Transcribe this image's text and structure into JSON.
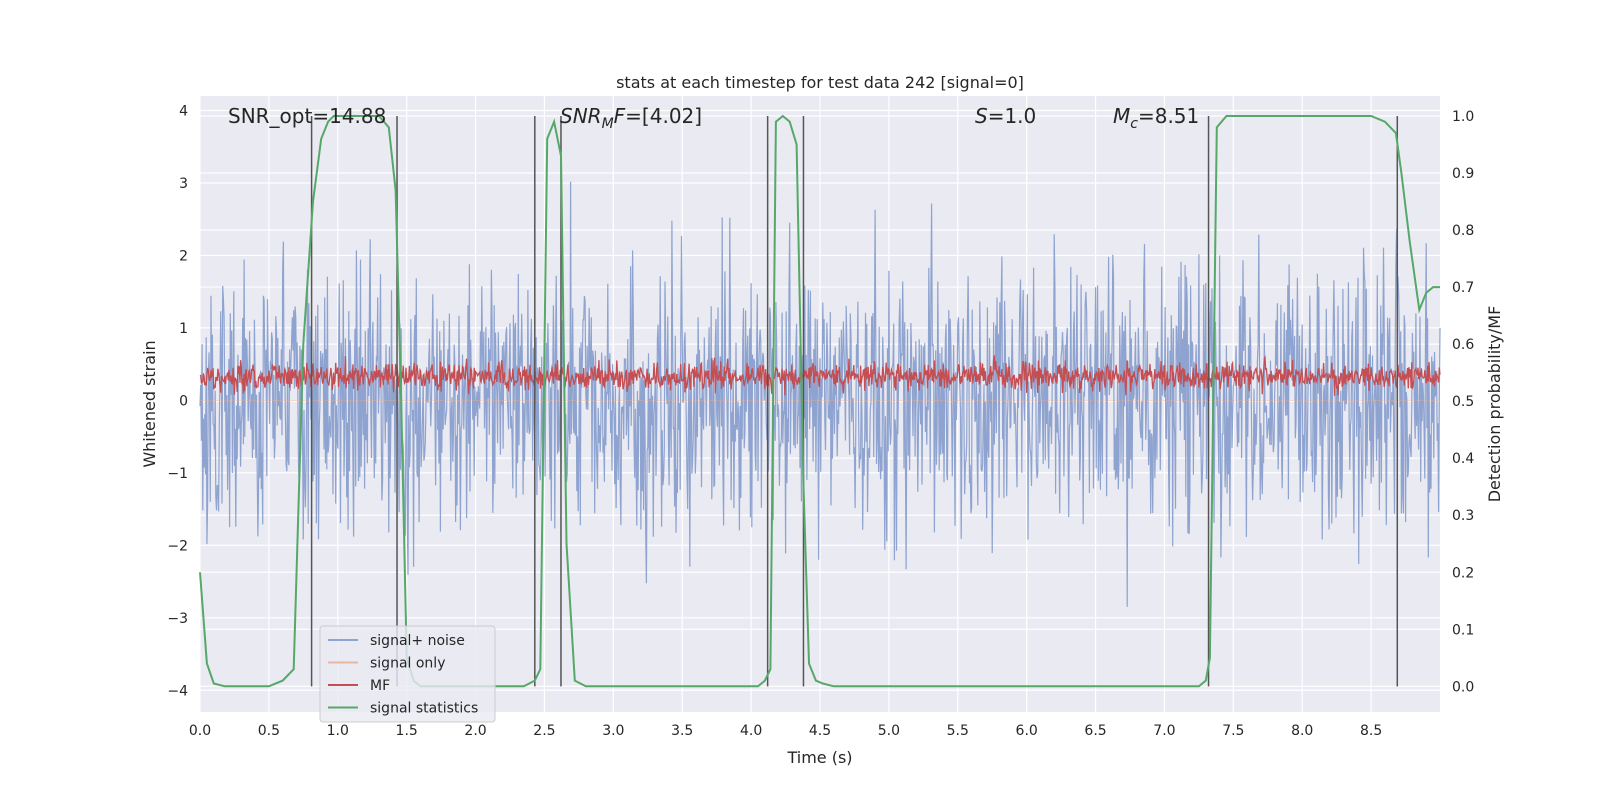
{
  "chart_data": {
    "type": "line",
    "title": "stats at each timestep for test data 242 [signal=0]",
    "xlabel": "Time (s)",
    "ylabel_left": "Whitened strain",
    "ylabel_right": "Detection probability/MF",
    "xlim": [
      0.0,
      9.0
    ],
    "ylim_left": [
      -4.3,
      4.2
    ],
    "ylim_right": [
      -0.045,
      1.035
    ],
    "grid": true,
    "legend_position": "lower-left",
    "x_ticks": [
      "0.0",
      "0.5",
      "1.0",
      "1.5",
      "2.0",
      "2.5",
      "3.0",
      "3.5",
      "4.0",
      "4.5",
      "5.0",
      "5.5",
      "6.0",
      "6.5",
      "7.0",
      "7.5",
      "8.0",
      "8.5"
    ],
    "y_ticks_left": [
      "4",
      "3",
      "2",
      "1",
      "0",
      "−1",
      "−2",
      "−3",
      "−4"
    ],
    "y_ticks_right": [
      "1.0",
      "0.9",
      "0.8",
      "0.7",
      "0.6",
      "0.5",
      "0.4",
      "0.3",
      "0.2",
      "0.1",
      "0.0"
    ],
    "annotations": [
      {
        "id": "snr-opt",
        "parts": [
          {
            "text": "SNR_opt=14.88",
            "style": "normal"
          }
        ]
      },
      {
        "id": "snr-mf",
        "parts": [
          {
            "text": "SNR",
            "style": "italic"
          },
          {
            "text": "M",
            "style": "italic-sub"
          },
          {
            "text": "F",
            "style": "italic"
          },
          {
            "text": "=[4.02]",
            "style": "normal"
          }
        ]
      },
      {
        "id": "s-value",
        "parts": [
          {
            "text": "S",
            "style": "italic"
          },
          {
            "text": "=1.0",
            "style": "normal"
          }
        ]
      },
      {
        "id": "mc-value",
        "parts": [
          {
            "text": "M",
            "style": "italic"
          },
          {
            "text": "c",
            "style": "italic-sub"
          },
          {
            "text": "=8.51",
            "style": "normal"
          }
        ]
      }
    ],
    "vertical_lines_x": [
      0.81,
      1.43,
      2.43,
      2.62,
      4.12,
      4.38,
      7.32,
      8.69
    ],
    "series": [
      {
        "name": "signal+ noise",
        "color": "#8ea3cf",
        "kind": "noise",
        "amplitude_typical": 1.3,
        "amplitude_peak": 3.3
      },
      {
        "name": "signal only",
        "color": "#e8a88c",
        "kind": "flat",
        "values": [
          0.0
        ]
      },
      {
        "name": "MF",
        "color": "#c44e52",
        "kind": "noise",
        "center": 0.33,
        "amplitude_typical": 0.22,
        "amplitude_peak": 0.62
      },
      {
        "name": "signal statistics",
        "color": "#55a868",
        "axis": "right",
        "x": [
          0.0,
          0.05,
          0.1,
          0.18,
          0.3,
          0.5,
          0.6,
          0.68,
          0.75,
          0.82,
          0.88,
          0.93,
          0.97,
          1.0,
          1.1,
          1.2,
          1.3,
          1.37,
          1.42,
          1.46,
          1.5,
          1.55,
          1.6,
          1.8,
          2.0,
          2.2,
          2.35,
          2.43,
          2.47,
          2.52,
          2.57,
          2.62,
          2.66,
          2.72,
          2.8,
          3.0,
          3.5,
          4.0,
          4.05,
          4.1,
          4.14,
          4.18,
          4.23,
          4.28,
          4.33,
          4.38,
          4.42,
          4.47,
          4.52,
          4.6,
          4.8,
          5.0,
          5.5,
          6.0,
          6.5,
          7.0,
          7.2,
          7.25,
          7.3,
          7.33,
          7.38,
          7.45,
          7.6,
          8.0,
          8.5,
          8.6,
          8.68,
          8.72,
          8.78,
          8.85,
          8.9,
          8.95,
          9.0
        ],
        "values": [
          0.2,
          0.04,
          0.005,
          0.0,
          0.0,
          0.0,
          0.01,
          0.03,
          0.6,
          0.85,
          0.96,
          0.99,
          1.0,
          1.0,
          1.0,
          1.0,
          1.0,
          0.98,
          0.87,
          0.5,
          0.05,
          0.01,
          0.0,
          0.0,
          0.0,
          0.0,
          0.0,
          0.01,
          0.03,
          0.96,
          0.99,
          0.93,
          0.25,
          0.01,
          0.0,
          0.0,
          0.0,
          0.0,
          0.0,
          0.01,
          0.03,
          0.99,
          1.0,
          0.99,
          0.95,
          0.35,
          0.04,
          0.01,
          0.005,
          0.0,
          0.0,
          0.0,
          0.0,
          0.0,
          0.0,
          0.0,
          0.0,
          0.0,
          0.01,
          0.05,
          0.98,
          1.0,
          1.0,
          1.0,
          1.0,
          0.99,
          0.97,
          0.9,
          0.78,
          0.66,
          0.69,
          0.7,
          0.7
        ]
      }
    ]
  }
}
